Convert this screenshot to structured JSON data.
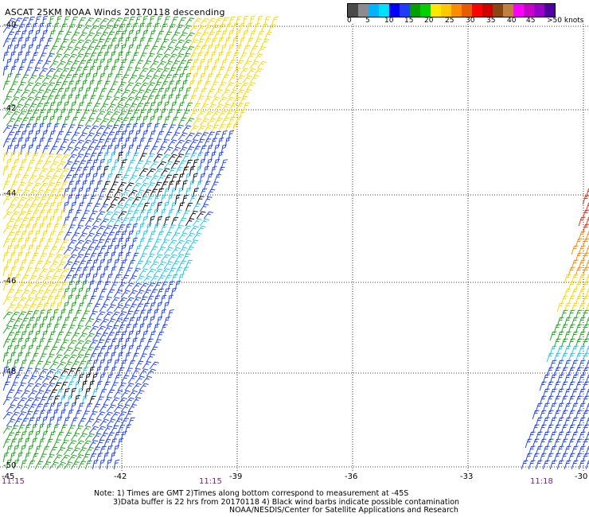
{
  "title": "ASCAT 25KM NOAA Winds 20170118 descending",
  "scale": {
    "colors": [
      "#4a4a4a",
      "#8c8c8c",
      "#00b4ff",
      "#00e0ff",
      "#0000ff",
      "#1e3cff",
      "#00a000",
      "#00d000",
      "#ffe800",
      "#ffc800",
      "#ff8c00",
      "#e85c00",
      "#ff0000",
      "#d00000",
      "#8b4513",
      "#c08040",
      "#ff00ff",
      "#c800c8",
      "#9600c8",
      "#5000a0"
    ],
    "labels": [
      "0",
      "5",
      "10",
      "15",
      "20",
      "25",
      "30",
      "35",
      "40",
      "45",
      ">50 knots"
    ]
  },
  "axes": {
    "lat_labels": [
      "-40",
      "-42",
      "-44",
      "-46",
      "-48",
      "-50"
    ],
    "lon_labels": [
      "-45",
      "-42",
      "-39",
      "-36",
      "-33",
      "-30"
    ],
    "times": [
      "11:15",
      "11:15",
      "11:18"
    ]
  },
  "notes": [
    "Note: 1) Times are GMT 2)Times along bottom correspond to measurement at -45S",
    "3)Data buffer is 22 hrs from 20170118 4) Black wind barbs indicate possible contamination",
    "NOAA/NESDIS/Center for Satellite Applications and Research"
  ]
}
